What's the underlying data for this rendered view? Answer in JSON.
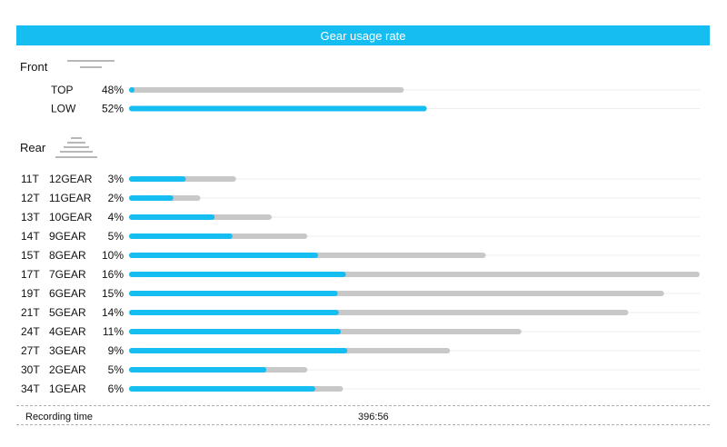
{
  "title": "Gear usage rate",
  "colors": {
    "accent": "#16bdf1",
    "track": "#c8c8c8",
    "row_line": "#ededed"
  },
  "front": {
    "label": "Front",
    "icon": "chainring-icon",
    "rows": [
      {
        "name": "TOP",
        "pct_label": "48%"
      },
      {
        "name": "LOW",
        "pct_label": "52%"
      }
    ]
  },
  "rear": {
    "label": "Rear",
    "icon": "cassette-icon",
    "rows": [
      {
        "teeth": "11T",
        "gear": "12GEAR",
        "pct_label": "3%"
      },
      {
        "teeth": "12T",
        "gear": "11GEAR",
        "pct_label": "2%"
      },
      {
        "teeth": "13T",
        "gear": "10GEAR",
        "pct_label": "4%"
      },
      {
        "teeth": "14T",
        "gear": "9GEAR",
        "pct_label": "5%"
      },
      {
        "teeth": "15T",
        "gear": "8GEAR",
        "pct_label": "10%"
      },
      {
        "teeth": "17T",
        "gear": "7GEAR",
        "pct_label": "16%"
      },
      {
        "teeth": "19T",
        "gear": "6GEAR",
        "pct_label": "15%"
      },
      {
        "teeth": "21T",
        "gear": "5GEAR",
        "pct_label": "14%"
      },
      {
        "teeth": "24T",
        "gear": "4GEAR",
        "pct_label": "11%"
      },
      {
        "teeth": "27T",
        "gear": "3GEAR",
        "pct_label": "9%"
      },
      {
        "teeth": "30T",
        "gear": "2GEAR",
        "pct_label": "5%"
      },
      {
        "teeth": "34T",
        "gear": "1GEAR",
        "pct_label": "6%"
      }
    ]
  },
  "footer": {
    "label": "Recording time",
    "value": "396:56"
  },
  "chart_data": [
    {
      "type": "bar",
      "orientation": "horizontal",
      "categories": [
        "TOP",
        "LOW"
      ],
      "values": [
        48,
        52
      ],
      "highlight": [
        0,
        1
      ],
      "xlim": [
        0,
        100
      ]
    },
    {
      "type": "bar",
      "orientation": "horizontal",
      "categories": [
        "11T 12GEAR",
        "12T 11GEAR",
        "13T 10GEAR",
        "14T 9GEAR",
        "15T 8GEAR",
        "17T 7GEAR",
        "19T 6GEAR",
        "21T 5GEAR",
        "24T 4GEAR",
        "27T 3GEAR",
        "30T 2GEAR",
        "34T 1GEAR"
      ],
      "values": [
        3,
        2,
        4,
        5,
        10,
        16,
        15,
        14,
        11,
        9,
        5,
        6
      ],
      "highlight": [
        0.53,
        0.62,
        0.6,
        0.58,
        0.53,
        0.38,
        0.39,
        0.42,
        0.54,
        0.68,
        0.77,
        0.87
      ],
      "xlim": [
        0,
        16
      ]
    }
  ]
}
